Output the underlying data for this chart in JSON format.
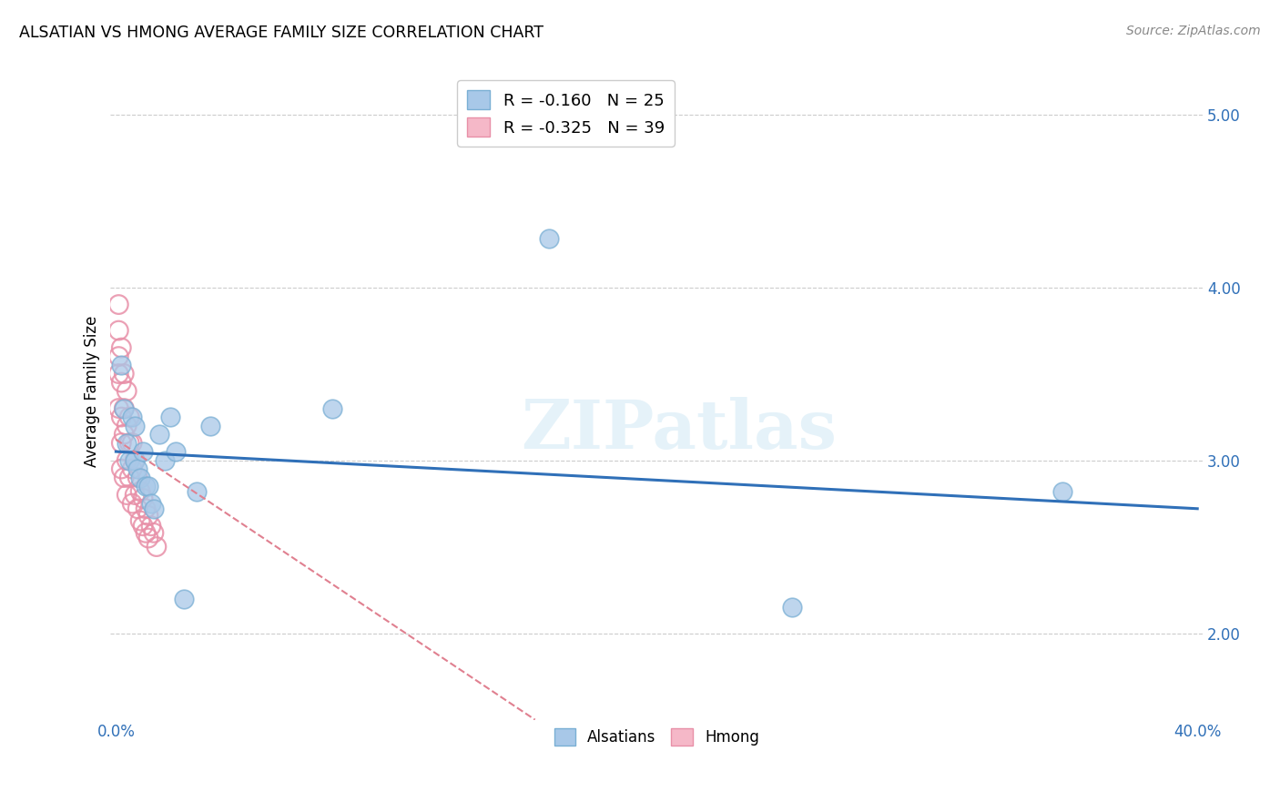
{
  "title": "ALSATIAN VS HMONG AVERAGE FAMILY SIZE CORRELATION CHART",
  "source": "Source: ZipAtlas.com",
  "ylabel": "Average Family Size",
  "xlim": [
    -0.002,
    0.402
  ],
  "ylim": [
    1.5,
    5.3
  ],
  "yticks": [
    2.0,
    3.0,
    4.0,
    5.0
  ],
  "xticks": [
    0.0,
    0.05,
    0.1,
    0.15,
    0.2,
    0.25,
    0.3,
    0.35,
    0.4
  ],
  "xtick_labels": [
    "0.0%",
    "",
    "",
    "",
    "",
    "",
    "",
    "",
    "40.0%"
  ],
  "alsatian_R": -0.16,
  "alsatian_N": 25,
  "hmong_R": -0.325,
  "hmong_N": 39,
  "alsatian_color": "#a8c8e8",
  "alsatian_edge_color": "#7aafd4",
  "hmong_color": "#f5b8c8",
  "hmong_edge_color": "#e890a8",
  "alsatian_line_color": "#3070b8",
  "hmong_line_color": "#e08090",
  "background_color": "#ffffff",
  "grid_color": "#cccccc",
  "alsatian_x": [
    0.002,
    0.003,
    0.004,
    0.005,
    0.006,
    0.007,
    0.007,
    0.008,
    0.009,
    0.01,
    0.011,
    0.012,
    0.013,
    0.014,
    0.016,
    0.018,
    0.02,
    0.022,
    0.025,
    0.03,
    0.035,
    0.08,
    0.16,
    0.25,
    0.35
  ],
  "alsatian_y": [
    3.55,
    3.3,
    3.1,
    3.0,
    3.25,
    3.2,
    3.0,
    2.95,
    2.9,
    3.05,
    2.85,
    2.85,
    2.75,
    2.72,
    3.15,
    3.0,
    3.25,
    3.05,
    2.2,
    2.82,
    3.2,
    3.3,
    4.28,
    2.15,
    2.82
  ],
  "hmong_x": [
    0.001,
    0.001,
    0.001,
    0.001,
    0.001,
    0.002,
    0.002,
    0.002,
    0.002,
    0.002,
    0.003,
    0.003,
    0.003,
    0.003,
    0.004,
    0.004,
    0.004,
    0.004,
    0.005,
    0.005,
    0.005,
    0.006,
    0.006,
    0.006,
    0.007,
    0.007,
    0.008,
    0.008,
    0.009,
    0.009,
    0.01,
    0.01,
    0.011,
    0.011,
    0.012,
    0.012,
    0.013,
    0.014,
    0.015
  ],
  "hmong_y": [
    3.9,
    3.75,
    3.6,
    3.5,
    3.3,
    3.65,
    3.45,
    3.25,
    3.1,
    2.95,
    3.5,
    3.3,
    3.15,
    2.9,
    3.4,
    3.2,
    3.0,
    2.8,
    3.25,
    3.1,
    2.9,
    3.1,
    2.95,
    2.75,
    3.0,
    2.8,
    2.9,
    2.72,
    2.82,
    2.65,
    2.78,
    2.62,
    2.72,
    2.58,
    2.68,
    2.55,
    2.62,
    2.58,
    2.5
  ],
  "alsatian_trendline_x0": 0.0,
  "alsatian_trendline_y0": 3.05,
  "alsatian_trendline_x1": 0.4,
  "alsatian_trendline_y1": 2.72,
  "hmong_trendline_x0": 0.0,
  "hmong_trendline_y0": 3.12,
  "hmong_trendline_x1": 0.155,
  "hmong_trendline_y1": 1.5
}
